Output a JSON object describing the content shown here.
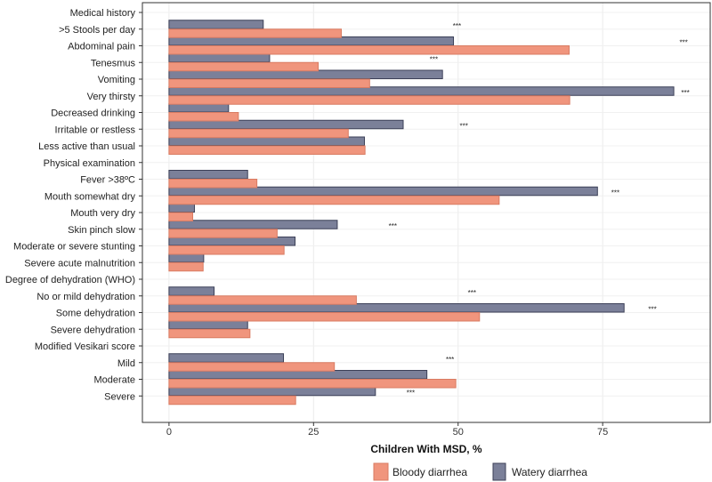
{
  "chart_data": {
    "type": "bar",
    "orientation": "horizontal",
    "title": "",
    "xlabel": "Children With MSD, %",
    "ylabel": "",
    "xlim": [
      -4.6,
      93.6
    ],
    "xticks": [
      0,
      25,
      50,
      75
    ],
    "grid": true,
    "legend_position": "bottom",
    "categories": [
      "Medical history",
      ">5 Stools per day",
      "Abdominal pain",
      "Tenesmus",
      "Vomiting",
      "Very thirsty",
      "Decreased drinking",
      "Irritable or restless",
      "Less active than usual",
      "Physical examination",
      "Fever >38ºC",
      "Mouth somewhat dry",
      "Mouth very dry",
      "Skin pinch slow",
      "Moderate or severe stunting",
      "Severe acute malnutrition",
      "Degree of dehydration (WHO)",
      "No or mild dehydration",
      "Some dehydration",
      "Severe dehydration",
      "Modified Vesikari score",
      "Mild",
      "Moderate",
      "Severe"
    ],
    "series": [
      {
        "name": "Watery diarrhea",
        "color": "#7b8099",
        "values": [
          null,
          16.3,
          49.2,
          17.4,
          47.3,
          87.3,
          10.3,
          40.5,
          33.8,
          null,
          13.6,
          74.1,
          4.4,
          29.1,
          21.8,
          6.0,
          null,
          7.8,
          78.7,
          13.6,
          null,
          19.8,
          44.6,
          35.7
        ]
      },
      {
        "name": "Bloody diarrhea",
        "color": "#f0957d",
        "values": [
          null,
          29.8,
          69.2,
          25.8,
          34.7,
          69.3,
          12.0,
          31.0,
          33.9,
          null,
          15.2,
          57.1,
          4.1,
          18.7,
          19.9,
          5.9,
          null,
          32.4,
          53.7,
          14.0,
          null,
          28.6,
          49.6,
          21.9
        ]
      }
    ],
    "annotations": [
      {
        "category": ">5 Stools per day",
        "text": "***",
        "x": 49.8
      },
      {
        "category": "Abdominal pain",
        "text": "***",
        "x": 89.0
      },
      {
        "category": "Tenesmus",
        "text": "***",
        "x": 45.8
      },
      {
        "category": "Very thirsty",
        "text": "***",
        "x": 89.3
      },
      {
        "category": "Irritable or restless",
        "text": "***",
        "x": 51.0
      },
      {
        "category": "Mouth somewhat dry",
        "text": "***",
        "x": 77.2
      },
      {
        "category": "Skin pinch slow",
        "text": "***",
        "x": 38.7
      },
      {
        "category": "No or mild dehydration",
        "text": "***",
        "x": 52.4
      },
      {
        "category": "Some dehydration",
        "text": "***",
        "x": 83.6
      },
      {
        "category": "Mild",
        "text": "***",
        "x": 48.6
      },
      {
        "category": "Severe",
        "text": "***",
        "x": 41.8
      }
    ],
    "legend": [
      "Bloody diarrhea",
      "Watery diarrhea"
    ]
  }
}
